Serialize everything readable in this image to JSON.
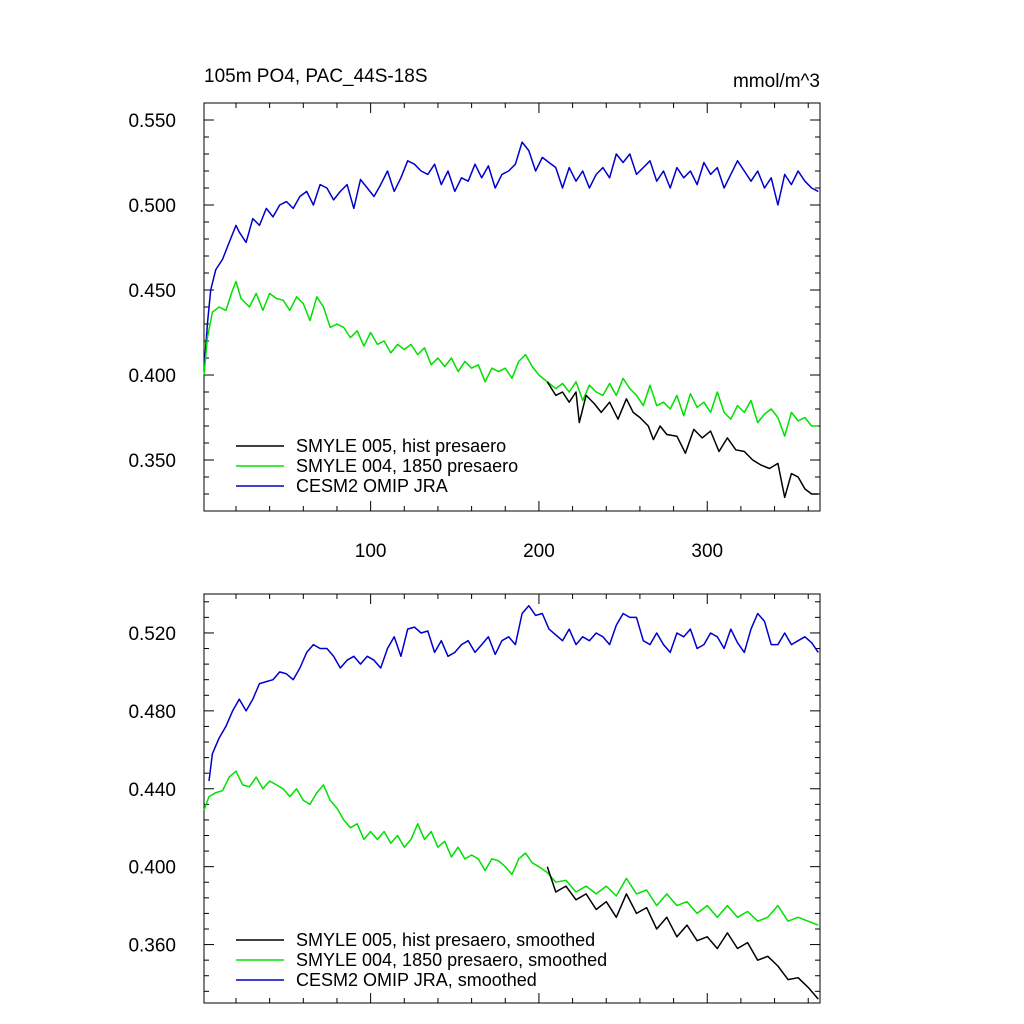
{
  "chart_data": [
    {
      "type": "line",
      "title": "105m PO4, PAC_44S-18S",
      "units": "mmol/m^3",
      "xlim": [
        1,
        367
      ],
      "ylim": [
        0.32,
        0.56
      ],
      "xticks": [
        100,
        200,
        300
      ],
      "xtick_labels": [
        "100",
        "200",
        "300"
      ],
      "yticks": [
        0.35,
        0.4,
        0.45,
        0.5,
        0.55
      ],
      "ytick_labels": [
        "0.350",
        "0.400",
        "0.450",
        "0.500",
        "0.550"
      ],
      "legend_placement": "bottom-left",
      "grid": false,
      "series": [
        {
          "name": "SMYLE 005, hist presaero",
          "color": "#000000",
          "x": [
            205,
            210,
            214,
            218,
            222,
            224,
            228,
            233,
            237,
            242,
            247,
            252,
            256,
            260,
            265,
            268,
            272,
            276,
            282,
            287,
            292,
            297,
            302,
            307,
            312,
            317,
            322,
            327,
            332,
            337,
            342,
            346,
            350,
            354,
            358,
            362,
            366
          ],
          "y": [
            0.396,
            0.388,
            0.39,
            0.384,
            0.39,
            0.372,
            0.388,
            0.383,
            0.378,
            0.384,
            0.374,
            0.386,
            0.378,
            0.375,
            0.37,
            0.362,
            0.37,
            0.365,
            0.364,
            0.354,
            0.368,
            0.363,
            0.367,
            0.355,
            0.363,
            0.356,
            0.355,
            0.35,
            0.347,
            0.345,
            0.348,
            0.328,
            0.342,
            0.34,
            0.333,
            0.33,
            0.33
          ]
        },
        {
          "name": "SMYLE 004, 1850 presaero",
          "color": "#00e000",
          "x": [
            1,
            3,
            6,
            10,
            14,
            18,
            20,
            23,
            28,
            32,
            36,
            40,
            44,
            48,
            52,
            56,
            60,
            64,
            68,
            72,
            76,
            80,
            84,
            88,
            92,
            96,
            100,
            104,
            108,
            112,
            116,
            120,
            124,
            128,
            132,
            136,
            140,
            144,
            148,
            152,
            156,
            160,
            164,
            168,
            172,
            176,
            180,
            184,
            188,
            192,
            196,
            200,
            205,
            210,
            214,
            218,
            222,
            226,
            230,
            234,
            238,
            242,
            246,
            250,
            254,
            258,
            262,
            266,
            270,
            274,
            278,
            282,
            286,
            290,
            294,
            298,
            302,
            306,
            310,
            314,
            318,
            322,
            326,
            330,
            334,
            338,
            342,
            346,
            350,
            354,
            358,
            362,
            366
          ],
          "y": [
            0.4,
            0.422,
            0.437,
            0.44,
            0.438,
            0.45,
            0.455,
            0.445,
            0.44,
            0.448,
            0.438,
            0.448,
            0.445,
            0.444,
            0.438,
            0.446,
            0.442,
            0.432,
            0.446,
            0.44,
            0.428,
            0.43,
            0.428,
            0.422,
            0.426,
            0.417,
            0.425,
            0.418,
            0.42,
            0.413,
            0.418,
            0.415,
            0.418,
            0.412,
            0.416,
            0.406,
            0.41,
            0.405,
            0.41,
            0.402,
            0.408,
            0.404,
            0.406,
            0.396,
            0.404,
            0.402,
            0.404,
            0.398,
            0.408,
            0.412,
            0.405,
            0.4,
            0.396,
            0.392,
            0.395,
            0.39,
            0.396,
            0.385,
            0.394,
            0.39,
            0.388,
            0.395,
            0.388,
            0.398,
            0.392,
            0.388,
            0.382,
            0.394,
            0.382,
            0.384,
            0.38,
            0.388,
            0.376,
            0.389,
            0.381,
            0.384,
            0.378,
            0.39,
            0.378,
            0.374,
            0.382,
            0.378,
            0.385,
            0.372,
            0.377,
            0.38,
            0.375,
            0.364,
            0.378,
            0.373,
            0.375,
            0.37,
            0.37
          ]
        },
        {
          "name": "CESM2 OMIP JRA",
          "color": "#0000cc",
          "x": [
            1,
            3,
            5,
            8,
            12,
            16,
            20,
            22,
            26,
            30,
            34,
            38,
            42,
            46,
            50,
            54,
            58,
            62,
            66,
            70,
            74,
            78,
            82,
            86,
            90,
            94,
            98,
            102,
            106,
            110,
            114,
            118,
            122,
            126,
            130,
            134,
            138,
            142,
            146,
            150,
            154,
            158,
            162,
            166,
            170,
            174,
            178,
            182,
            186,
            190,
            194,
            198,
            202,
            206,
            210,
            214,
            218,
            222,
            226,
            230,
            234,
            238,
            242,
            246,
            250,
            254,
            258,
            262,
            266,
            270,
            274,
            278,
            282,
            286,
            290,
            294,
            298,
            302,
            306,
            310,
            314,
            318,
            322,
            326,
            330,
            334,
            338,
            342,
            346,
            350,
            354,
            358,
            362,
            366
          ],
          "y": [
            0.402,
            0.43,
            0.45,
            0.462,
            0.468,
            0.478,
            0.488,
            0.484,
            0.478,
            0.492,
            0.488,
            0.498,
            0.493,
            0.5,
            0.502,
            0.498,
            0.505,
            0.508,
            0.5,
            0.512,
            0.51,
            0.503,
            0.508,
            0.512,
            0.498,
            0.515,
            0.51,
            0.505,
            0.512,
            0.52,
            0.508,
            0.516,
            0.526,
            0.524,
            0.52,
            0.518,
            0.524,
            0.512,
            0.52,
            0.508,
            0.516,
            0.514,
            0.524,
            0.516,
            0.523,
            0.51,
            0.518,
            0.52,
            0.524,
            0.537,
            0.532,
            0.52,
            0.528,
            0.525,
            0.522,
            0.51,
            0.522,
            0.514,
            0.52,
            0.51,
            0.518,
            0.522,
            0.516,
            0.53,
            0.525,
            0.53,
            0.518,
            0.522,
            0.526,
            0.514,
            0.52,
            0.51,
            0.522,
            0.516,
            0.52,
            0.512,
            0.525,
            0.518,
            0.522,
            0.51,
            0.518,
            0.526,
            0.52,
            0.514,
            0.52,
            0.51,
            0.516,
            0.5,
            0.518,
            0.512,
            0.52,
            0.514,
            0.51,
            0.508
          ]
        }
      ]
    },
    {
      "type": "line",
      "xlim": [
        1,
        367
      ],
      "ylim": [
        0.33,
        0.54
      ],
      "xticks": [
        100,
        200,
        300
      ],
      "yticks": [
        0.36,
        0.4,
        0.44,
        0.48,
        0.52
      ],
      "ytick_labels": [
        "0.360",
        "0.400",
        "0.440",
        "0.480",
        "0.520"
      ],
      "legend_placement": "bottom-left",
      "grid": false,
      "series": [
        {
          "name": "SMYLE 005, hist presaero, smoothed",
          "color": "#000000",
          "x": [
            205,
            210,
            216,
            222,
            228,
            234,
            240,
            246,
            252,
            258,
            264,
            270,
            276,
            282,
            288,
            294,
            300,
            306,
            312,
            318,
            324,
            330,
            336,
            342,
            348,
            354,
            360,
            366
          ],
          "y": [
            0.4,
            0.387,
            0.39,
            0.383,
            0.386,
            0.378,
            0.382,
            0.374,
            0.386,
            0.376,
            0.379,
            0.368,
            0.374,
            0.364,
            0.37,
            0.362,
            0.364,
            0.358,
            0.366,
            0.358,
            0.361,
            0.352,
            0.354,
            0.349,
            0.342,
            0.343,
            0.338,
            0.332
          ]
        },
        {
          "name": "SMYLE 004, 1850 presaero, smoothed",
          "color": "#00e000",
          "x": [
            1,
            4,
            8,
            12,
            16,
            20,
            24,
            28,
            32,
            36,
            40,
            44,
            48,
            52,
            56,
            60,
            64,
            68,
            72,
            76,
            80,
            84,
            88,
            92,
            96,
            100,
            104,
            108,
            112,
            116,
            120,
            124,
            128,
            132,
            136,
            140,
            144,
            148,
            152,
            156,
            160,
            164,
            168,
            172,
            176,
            180,
            184,
            188,
            192,
            196,
            200,
            205,
            210,
            216,
            222,
            228,
            234,
            240,
            246,
            252,
            258,
            264,
            270,
            276,
            282,
            288,
            294,
            300,
            306,
            312,
            318,
            324,
            330,
            336,
            342,
            348,
            354,
            360,
            366
          ],
          "y": [
            0.429,
            0.436,
            0.438,
            0.439,
            0.446,
            0.449,
            0.442,
            0.441,
            0.446,
            0.44,
            0.444,
            0.442,
            0.44,
            0.436,
            0.44,
            0.434,
            0.432,
            0.438,
            0.442,
            0.434,
            0.43,
            0.424,
            0.42,
            0.422,
            0.414,
            0.418,
            0.414,
            0.418,
            0.412,
            0.416,
            0.41,
            0.414,
            0.422,
            0.414,
            0.418,
            0.41,
            0.413,
            0.405,
            0.41,
            0.404,
            0.406,
            0.404,
            0.398,
            0.404,
            0.403,
            0.4,
            0.396,
            0.404,
            0.407,
            0.402,
            0.4,
            0.397,
            0.392,
            0.393,
            0.387,
            0.39,
            0.386,
            0.39,
            0.385,
            0.394,
            0.386,
            0.388,
            0.38,
            0.386,
            0.38,
            0.382,
            0.376,
            0.38,
            0.374,
            0.38,
            0.374,
            0.377,
            0.372,
            0.374,
            0.38,
            0.372,
            0.374,
            0.372,
            0.37
          ]
        },
        {
          "name": "CESM2 OMIP JRA, smoothed",
          "color": "#0000cc",
          "x": [
            4,
            6,
            10,
            14,
            18,
            22,
            26,
            30,
            34,
            38,
            42,
            46,
            50,
            54,
            58,
            62,
            66,
            70,
            74,
            78,
            82,
            86,
            90,
            94,
            98,
            102,
            106,
            110,
            114,
            118,
            122,
            126,
            130,
            134,
            138,
            142,
            146,
            150,
            154,
            158,
            162,
            166,
            170,
            174,
            178,
            182,
            186,
            190,
            194,
            198,
            202,
            206,
            210,
            214,
            218,
            222,
            226,
            230,
            234,
            238,
            242,
            246,
            250,
            254,
            258,
            262,
            266,
            270,
            274,
            278,
            282,
            286,
            290,
            294,
            298,
            302,
            306,
            310,
            314,
            318,
            322,
            326,
            330,
            334,
            338,
            342,
            346,
            350,
            354,
            358,
            362,
            366
          ],
          "y": [
            0.444,
            0.458,
            0.466,
            0.472,
            0.48,
            0.486,
            0.48,
            0.486,
            0.494,
            0.495,
            0.496,
            0.5,
            0.499,
            0.496,
            0.502,
            0.51,
            0.514,
            0.512,
            0.512,
            0.508,
            0.502,
            0.506,
            0.508,
            0.504,
            0.508,
            0.506,
            0.502,
            0.512,
            0.518,
            0.508,
            0.522,
            0.523,
            0.52,
            0.521,
            0.51,
            0.516,
            0.508,
            0.51,
            0.514,
            0.516,
            0.51,
            0.514,
            0.518,
            0.509,
            0.516,
            0.518,
            0.514,
            0.53,
            0.534,
            0.529,
            0.53,
            0.522,
            0.519,
            0.516,
            0.522,
            0.514,
            0.518,
            0.516,
            0.52,
            0.518,
            0.514,
            0.524,
            0.53,
            0.528,
            0.528,
            0.516,
            0.514,
            0.52,
            0.514,
            0.51,
            0.52,
            0.518,
            0.522,
            0.512,
            0.514,
            0.52,
            0.518,
            0.512,
            0.522,
            0.515,
            0.51,
            0.522,
            0.53,
            0.526,
            0.514,
            0.514,
            0.52,
            0.514,
            0.516,
            0.518,
            0.515,
            0.51
          ]
        }
      ]
    }
  ]
}
